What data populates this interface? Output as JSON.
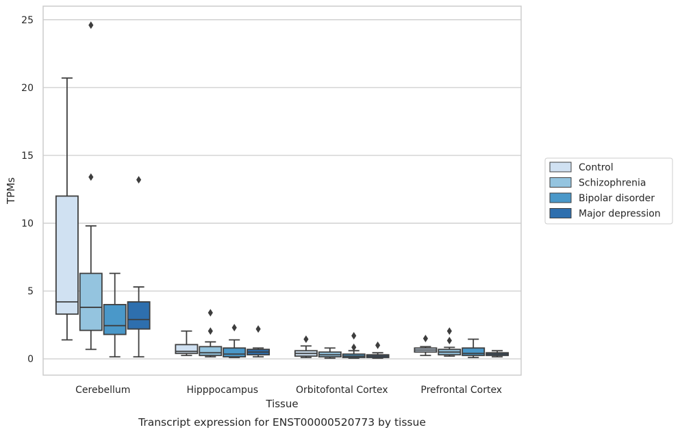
{
  "caption": "Transcript expression for ENST00000520773 by tissue",
  "chart_data": {
    "type": "boxplot",
    "title": "",
    "xlabel": "Tissue",
    "ylabel": "TPMs",
    "ylim": [
      -1.2,
      26
    ],
    "yticks": [
      0,
      5,
      10,
      15,
      20,
      25
    ],
    "grid": true,
    "legend_placement": "right",
    "categories": [
      "Cerebellum",
      "Hipppocampus",
      "Orbitofontal Cortex",
      "Prefrontal Cortex"
    ],
    "series": [
      {
        "name": "Control",
        "color": "#d0e1f2",
        "boxes": [
          {
            "whislo": 1.4,
            "q1": 3.3,
            "med": 4.2,
            "q3": 12.0,
            "whishi": 20.7,
            "fliers": []
          },
          {
            "whislo": 0.25,
            "q1": 0.4,
            "med": 0.55,
            "q3": 1.05,
            "whishi": 2.05,
            "fliers": []
          },
          {
            "whislo": 0.1,
            "q1": 0.2,
            "med": 0.4,
            "q3": 0.6,
            "whishi": 0.95,
            "fliers": [
              1.45
            ]
          },
          {
            "whislo": 0.25,
            "q1": 0.5,
            "med": 0.65,
            "q3": 0.8,
            "whishi": 0.9,
            "fliers": [
              1.5
            ]
          }
        ]
      },
      {
        "name": "Schizophrenia",
        "color": "#94c4df",
        "boxes": [
          {
            "whislo": 0.7,
            "q1": 2.1,
            "med": 3.8,
            "q3": 6.3,
            "whishi": 9.8,
            "fliers": [
              13.4,
              24.6
            ]
          },
          {
            "whislo": 0.15,
            "q1": 0.25,
            "med": 0.45,
            "q3": 0.9,
            "whishi": 1.25,
            "fliers": [
              2.05,
              3.4
            ]
          },
          {
            "whislo": 0.05,
            "q1": 0.15,
            "med": 0.3,
            "q3": 0.5,
            "whishi": 0.8,
            "fliers": []
          },
          {
            "whislo": 0.2,
            "q1": 0.3,
            "med": 0.5,
            "q3": 0.7,
            "whishi": 0.85,
            "fliers": [
              1.35,
              2.05
            ]
          }
        ]
      },
      {
        "name": "Bipolar disorder",
        "color": "#4a98c9",
        "boxes": [
          {
            "whislo": 0.15,
            "q1": 1.8,
            "med": 2.45,
            "q3": 4.0,
            "whishi": 6.3,
            "fliers": []
          },
          {
            "whislo": 0.1,
            "q1": 0.15,
            "med": 0.35,
            "q3": 0.8,
            "whishi": 1.4,
            "fliers": [
              2.3
            ]
          },
          {
            "whislo": 0.05,
            "q1": 0.1,
            "med": 0.2,
            "q3": 0.35,
            "whishi": 0.6,
            "fliers": [
              0.85,
              1.7
            ]
          },
          {
            "whislo": 0.1,
            "q1": 0.25,
            "med": 0.4,
            "q3": 0.8,
            "whishi": 1.45,
            "fliers": []
          }
        ]
      },
      {
        "name": "Major depression",
        "color": "#2e6fae",
        "boxes": [
          {
            "whislo": 0.15,
            "q1": 2.2,
            "med": 2.9,
            "q3": 4.2,
            "whishi": 5.3,
            "fliers": [
              13.2
            ]
          },
          {
            "whislo": 0.15,
            "q1": 0.3,
            "med": 0.5,
            "q3": 0.7,
            "whishi": 0.8,
            "fliers": [
              2.2
            ]
          },
          {
            "whislo": 0.05,
            "q1": 0.1,
            "med": 0.2,
            "q3": 0.3,
            "whishi": 0.45,
            "fliers": [
              1.0
            ]
          },
          {
            "whislo": 0.15,
            "q1": 0.25,
            "med": 0.35,
            "q3": 0.45,
            "whishi": 0.6,
            "fliers": []
          }
        ]
      }
    ]
  }
}
